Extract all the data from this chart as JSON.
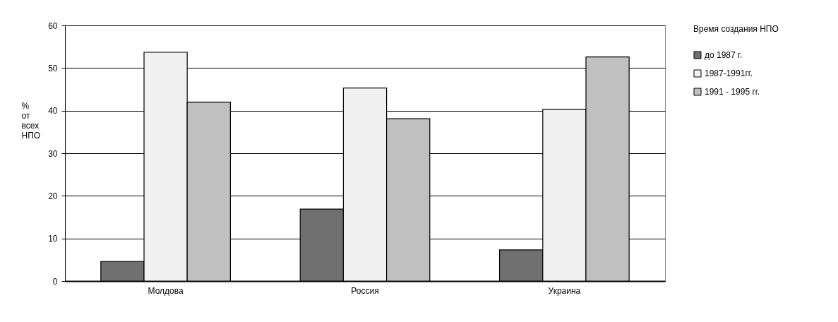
{
  "chart_data": {
    "type": "bar",
    "ylabel": "% от всех НПО",
    "legend_title": "Время создания НПО",
    "categories": [
      "Молдова",
      "Россия",
      "Украина"
    ],
    "series": [
      {
        "name": "до 1987 г.",
        "color": "#707070",
        "values": [
          4.6,
          16.9,
          7.3
        ]
      },
      {
        "name": "1987-1991гг.",
        "color": "#f0f0f0",
        "values": [
          53.7,
          45.3,
          40.3
        ]
      },
      {
        "name": "1991 - 1995 гг.",
        "color": "#c0c0c0",
        "values": [
          42,
          38.1,
          52.6
        ]
      }
    ],
    "ylim": [
      0,
      60
    ],
    "yticks": [
      0,
      10,
      20,
      30,
      40,
      50,
      60
    ],
    "grid": "y",
    "legend": "right"
  }
}
